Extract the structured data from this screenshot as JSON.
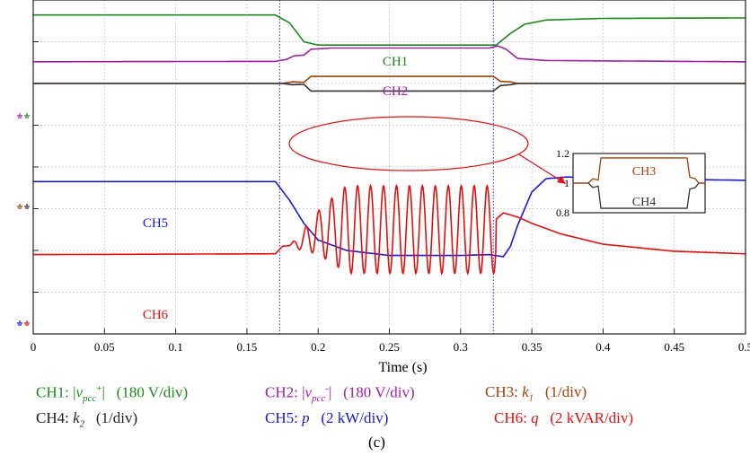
{
  "chart_data": {
    "type": "line",
    "title": "(c)",
    "xlabel": "Time (s)",
    "xlim": [
      0,
      0.5
    ],
    "x_ticks": [
      "0",
      "0.05",
      "0.1",
      "0.15",
      "0.2",
      "0.25",
      "0.3",
      "0.35",
      "0.4",
      "0.45",
      "0.5"
    ],
    "grid": true,
    "markers": [
      0.173,
      0.323
    ],
    "series": [
      {
        "name": "CH1",
        "color": "#1b8a1b",
        "points": [
          [
            0,
            7.64
          ],
          [
            0.17,
            7.64
          ],
          [
            0.18,
            7.45
          ],
          [
            0.19,
            7.0
          ],
          [
            0.2,
            6.92
          ],
          [
            0.325,
            6.92
          ],
          [
            0.335,
            7.2
          ],
          [
            0.345,
            7.42
          ],
          [
            0.36,
            7.52
          ],
          [
            0.4,
            7.56
          ],
          [
            0.5,
            7.57
          ]
        ]
      },
      {
        "name": "CH2",
        "color": "#a020a0",
        "points": [
          [
            0,
            6.52
          ],
          [
            0.17,
            6.53
          ],
          [
            0.178,
            6.58
          ],
          [
            0.183,
            6.66
          ],
          [
            0.19,
            6.68
          ],
          [
            0.195,
            6.82
          ],
          [
            0.21,
            6.85
          ],
          [
            0.32,
            6.85
          ],
          [
            0.326,
            6.9
          ],
          [
            0.332,
            6.82
          ],
          [
            0.34,
            6.6
          ],
          [
            0.36,
            6.55
          ],
          [
            0.5,
            6.52
          ]
        ]
      },
      {
        "name": "CH3",
        "color": "#a0400a",
        "points": [
          [
            0,
            6.0
          ],
          [
            0.175,
            6.0
          ],
          [
            0.182,
            6.04
          ],
          [
            0.19,
            6.03
          ],
          [
            0.195,
            6.17
          ],
          [
            0.323,
            6.17
          ],
          [
            0.328,
            6.05
          ],
          [
            0.335,
            6.04
          ],
          [
            0.34,
            6.0
          ],
          [
            0.5,
            6.0
          ]
        ]
      },
      {
        "name": "CH4",
        "color": "#333333",
        "points": [
          [
            0,
            6.0
          ],
          [
            0.175,
            6.0
          ],
          [
            0.182,
            5.97
          ],
          [
            0.19,
            5.98
          ],
          [
            0.195,
            5.82
          ],
          [
            0.323,
            5.82
          ],
          [
            0.328,
            5.95
          ],
          [
            0.335,
            5.97
          ],
          [
            0.34,
            6.0
          ],
          [
            0.5,
            6.0
          ]
        ]
      },
      {
        "name": "CH5",
        "color": "#1a1ad0",
        "points": [
          [
            0,
            3.65
          ],
          [
            0.17,
            3.65
          ],
          [
            0.18,
            3.2
          ],
          [
            0.19,
            2.65
          ],
          [
            0.2,
            2.25
          ],
          [
            0.22,
            2.0
          ],
          [
            0.25,
            1.88
          ],
          [
            0.3,
            1.88
          ],
          [
            0.32,
            1.9
          ],
          [
            0.33,
            1.85
          ],
          [
            0.335,
            2.1
          ],
          [
            0.34,
            2.6
          ],
          [
            0.35,
            3.4
          ],
          [
            0.36,
            3.72
          ],
          [
            0.375,
            3.76
          ],
          [
            0.4,
            3.73
          ],
          [
            0.5,
            3.68
          ]
        ]
      },
      {
        "name": "CH6",
        "color": "#e01010",
        "points": [
          [
            0,
            1.9
          ],
          [
            0.17,
            1.92
          ],
          [
            0.175,
            2.1
          ],
          [
            0.19,
            2.15
          ],
          [
            0.2,
            2.35
          ],
          [
            0.23,
            2.5
          ],
          [
            0.3,
            2.52
          ],
          [
            0.32,
            2.6
          ],
          [
            0.33,
            2.9
          ],
          [
            0.34,
            2.8
          ],
          [
            0.35,
            2.65
          ],
          [
            0.37,
            2.4
          ],
          [
            0.4,
            2.15
          ],
          [
            0.45,
            1.98
          ],
          [
            0.5,
            1.92
          ]
        ]
      }
    ],
    "oscillation": {
      "series": "CH6",
      "t_start": 0.18,
      "t_end": 0.325,
      "frequency": 110,
      "amplitude": 1.05,
      "center": 2.5
    },
    "channel_labels": [
      {
        "text": "CH1",
        "color": "#1b8a1b"
      },
      {
        "text": "CH2",
        "color": "#a020a0"
      },
      {
        "text": "CH5",
        "color": "#1a1ad0"
      },
      {
        "text": "CH6",
        "color": "#e01010"
      }
    ],
    "inset": {
      "y_ticks": [
        "1.2",
        "1",
        "0.8"
      ],
      "labels": [
        {
          "text": "CH3",
          "color": "#a0400a"
        },
        {
          "text": "CH4",
          "color": "#333333"
        }
      ]
    },
    "annotation_ellipse_color": "#e01010"
  },
  "legend": [
    {
      "prefix": "CH1: |",
      "var": "v",
      "sub": "pcc",
      "sup": "+",
      "suffix": "|   (180 V/div)",
      "color": "#1b8a1b"
    },
    {
      "prefix": "CH2: |",
      "var": "v",
      "sub": "pcc",
      "sup": "-",
      "suffix": "|   (180 V/div)",
      "color": "#a020a0"
    },
    {
      "prefix": "CH3: ",
      "var": "k",
      "sub": "1",
      "sup": "",
      "suffix": "   (1/div)",
      "color": "#a0400a"
    },
    {
      "prefix": "CH4: ",
      "var": "k",
      "sub": "2",
      "sup": "",
      "suffix": "   (1/div)",
      "color": "#222222"
    },
    {
      "prefix": "CH5: ",
      "var": "p",
      "sub": "",
      "sup": "",
      "suffix": "   (2 kW/div)",
      "color": "#1a1ad0"
    },
    {
      "prefix": "CH6: ",
      "var": "q",
      "sub": "",
      "sup": "",
      "suffix": "   (2 kVAR/div)",
      "color": "#e01010"
    }
  ]
}
